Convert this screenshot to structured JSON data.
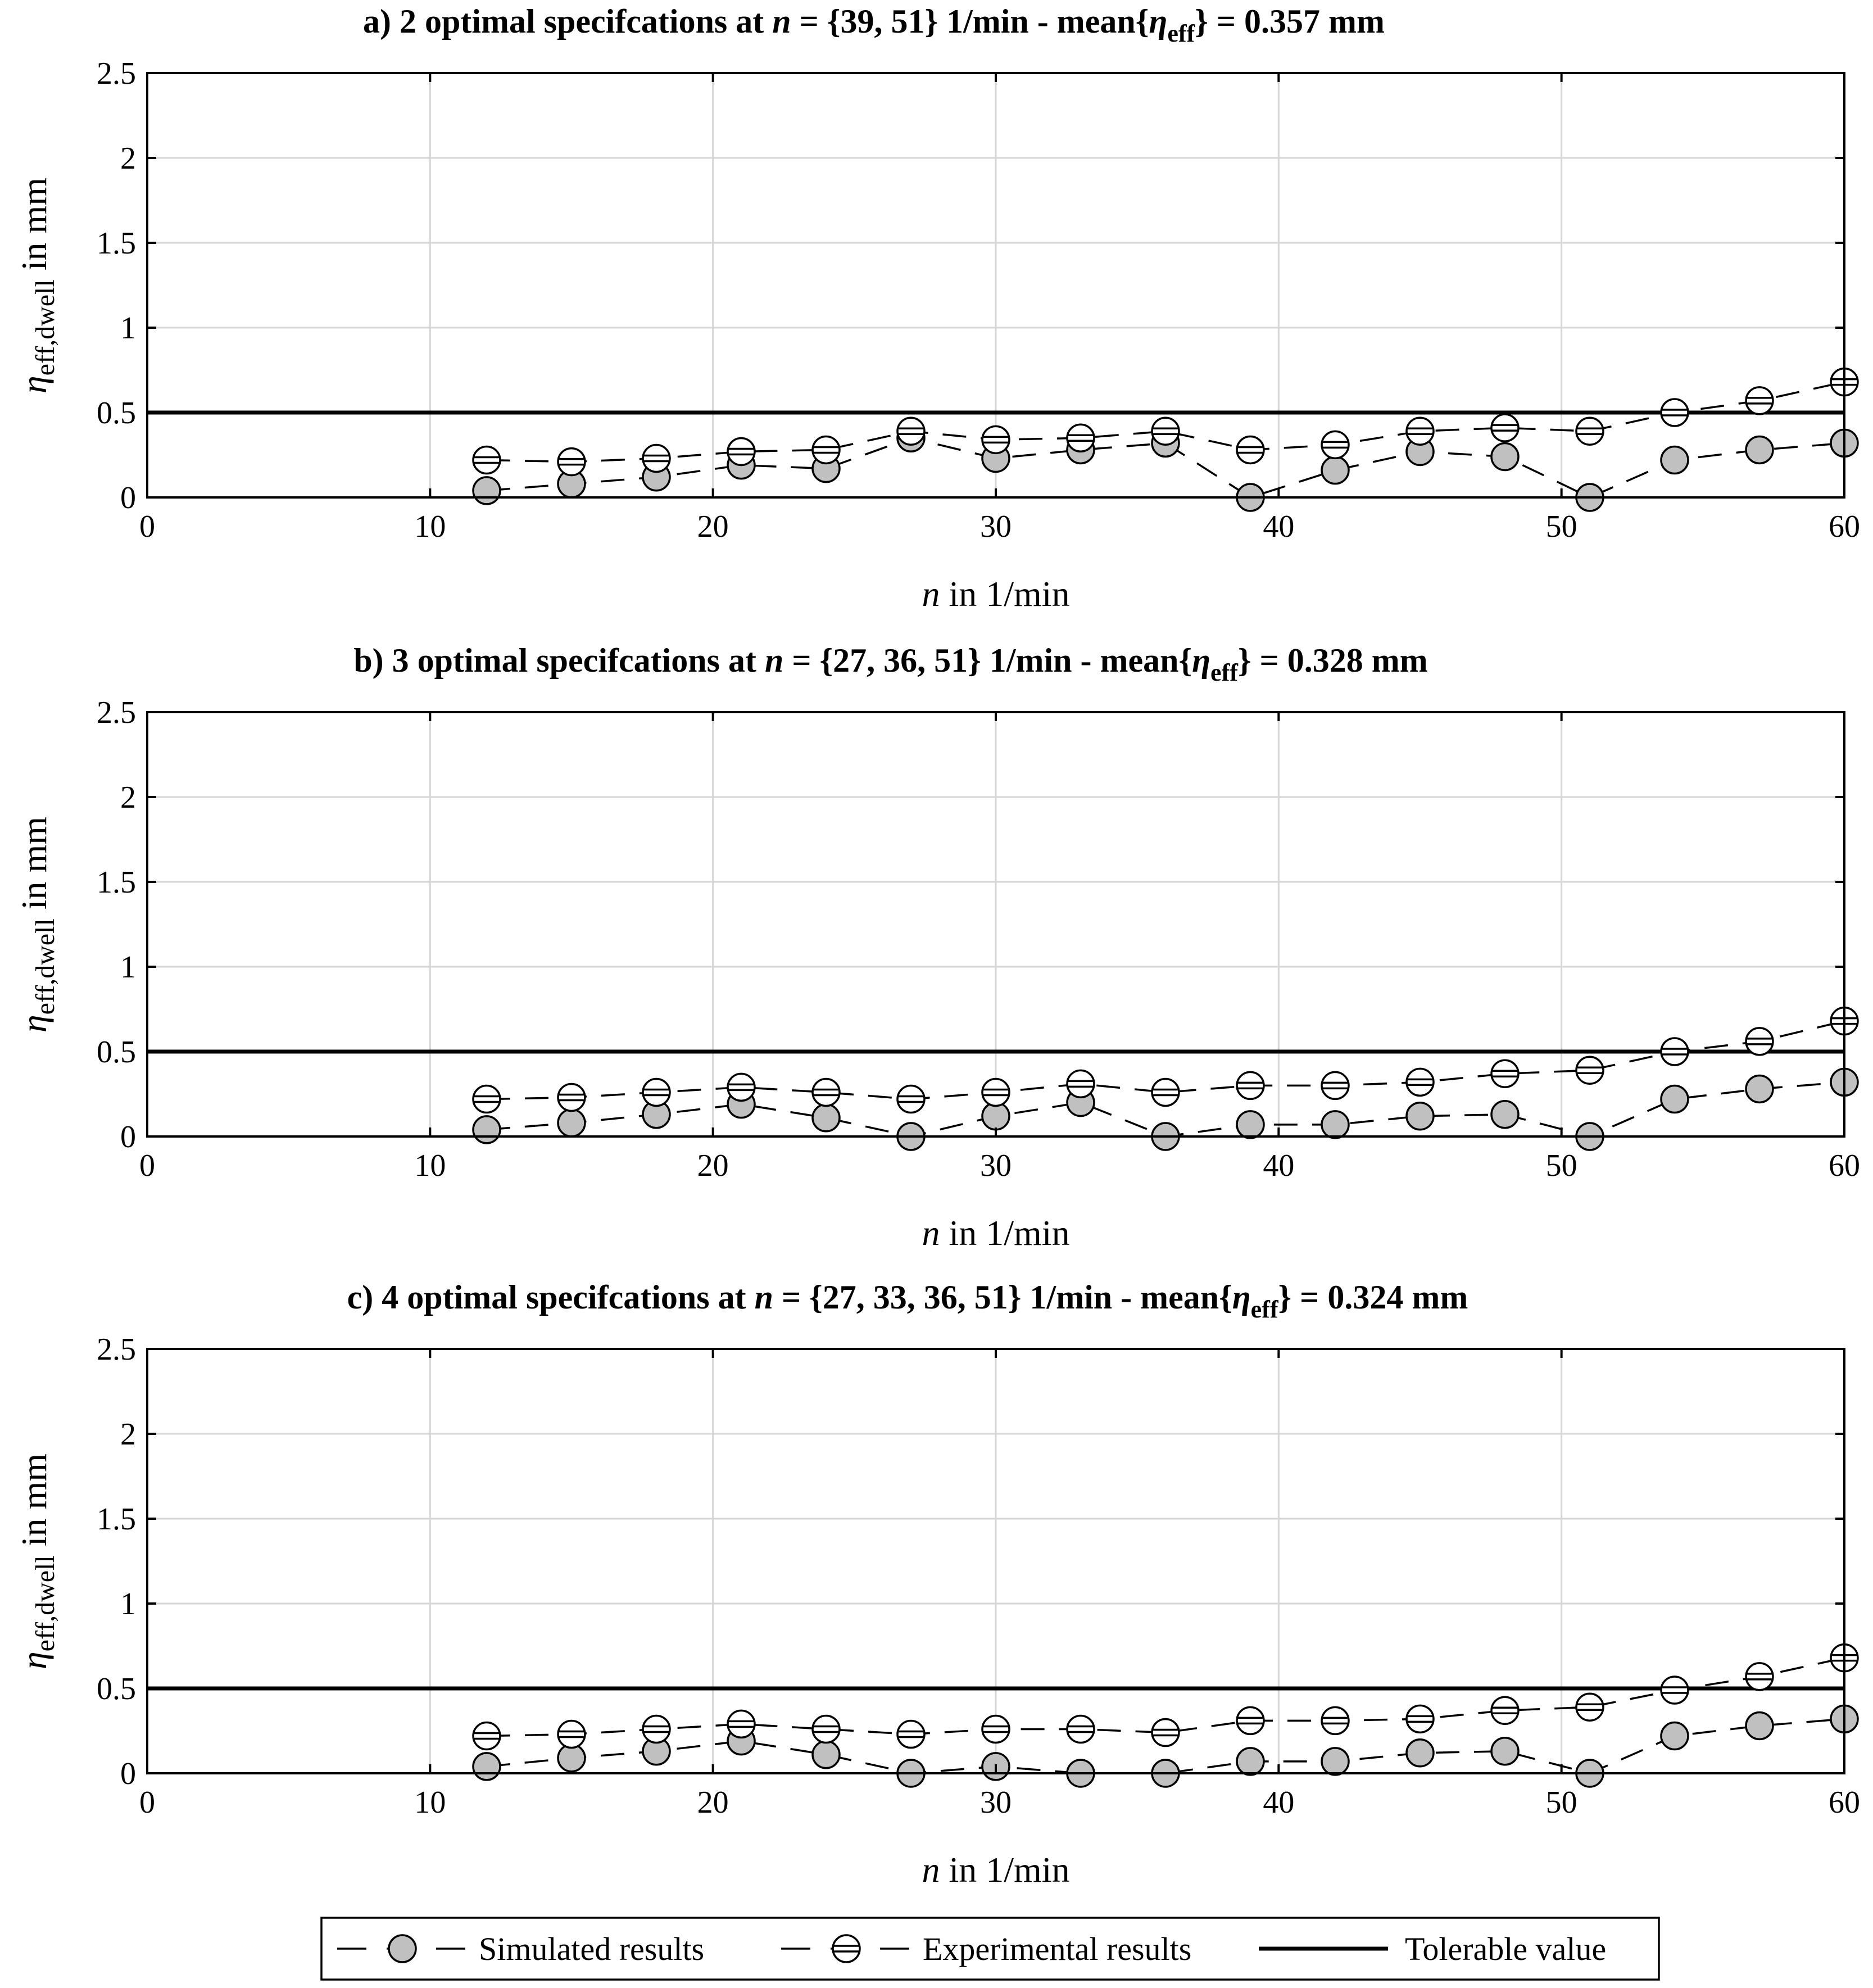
{
  "colors": {
    "simulated_fill": "#c0c0c0",
    "experimental_fill": "#ffffff",
    "grid": "#d6d6d6",
    "ink": "#000000"
  },
  "chart_data": [
    {
      "type": "line",
      "title": "a) 2 optimal specifcations at n = {39, 51} 1/min - mean{η_eff} = 0.357 mm",
      "title_parts": {
        "prefix": "a) 2 optimal specifcations at ",
        "var": "n",
        "mid": " = {39, 51} 1/min - mean{",
        "eta": "η",
        "sub": "eff",
        "suffix": "} = 0.357 mm"
      },
      "xlabel_var": "n",
      "xlabel_rest": " in 1/min",
      "ylabel_eta": "η",
      "ylabel_sub": "eff,dwell",
      "ylabel_rest": " in mm",
      "xlim": [
        0,
        60
      ],
      "ylim": [
        0,
        2.5
      ],
      "xticks": [
        0,
        10,
        20,
        30,
        40,
        50,
        60
      ],
      "yticks": [
        0,
        0.5,
        1,
        1.5,
        2,
        2.5
      ],
      "ytick_labels": [
        "0",
        "0.5",
        "1",
        "1.5",
        "2",
        "2.5"
      ],
      "grid": true,
      "tolerable_value": 0.5,
      "x": [
        12,
        15,
        18,
        21,
        24,
        27,
        30,
        33,
        36,
        39,
        42,
        45,
        48,
        51,
        54,
        57,
        60
      ],
      "series": [
        {
          "name": "Simulated results",
          "values": [
            0.04,
            0.08,
            0.12,
            0.19,
            0.17,
            0.35,
            0.23,
            0.28,
            0.32,
            0.0,
            0.16,
            0.27,
            0.24,
            0.0,
            0.22,
            0.28,
            0.32
          ]
        },
        {
          "name": "Experimental results",
          "values": [
            0.22,
            0.21,
            0.23,
            0.27,
            0.28,
            0.39,
            0.34,
            0.35,
            0.39,
            0.28,
            0.31,
            0.39,
            0.41,
            0.39,
            0.5,
            0.57,
            0.68
          ]
        }
      ]
    },
    {
      "type": "line",
      "title": "b) 3 optimal specifcations at n = {27, 36, 51} 1/min - mean{η_eff} = 0.328 mm",
      "title_parts": {
        "prefix": "b) 3 optimal specifcations at ",
        "var": "n",
        "mid": " = {27, 36, 51} 1/min - mean{",
        "eta": "η",
        "sub": "eff",
        "suffix": "} = 0.328 mm"
      },
      "xlabel_var": "n",
      "xlabel_rest": " in 1/min",
      "ylabel_eta": "η",
      "ylabel_sub": "eff,dwell",
      "ylabel_rest": " in mm",
      "xlim": [
        0,
        60
      ],
      "ylim": [
        0,
        2.5
      ],
      "xticks": [
        0,
        10,
        20,
        30,
        40,
        50,
        60
      ],
      "yticks": [
        0,
        0.5,
        1,
        1.5,
        2,
        2.5
      ],
      "ytick_labels": [
        "0",
        "0.5",
        "1",
        "1.5",
        "2",
        "2.5"
      ],
      "grid": true,
      "tolerable_value": 0.5,
      "x": [
        12,
        15,
        18,
        21,
        24,
        27,
        30,
        33,
        36,
        39,
        42,
        45,
        48,
        51,
        54,
        57,
        60
      ],
      "series": [
        {
          "name": "Simulated results",
          "values": [
            0.04,
            0.08,
            0.13,
            0.19,
            0.11,
            0.0,
            0.12,
            0.2,
            0.0,
            0.07,
            0.07,
            0.12,
            0.13,
            0.0,
            0.22,
            0.28,
            0.32
          ]
        },
        {
          "name": "Experimental results",
          "values": [
            0.22,
            0.23,
            0.26,
            0.29,
            0.26,
            0.22,
            0.26,
            0.31,
            0.26,
            0.3,
            0.3,
            0.32,
            0.37,
            0.39,
            0.5,
            0.56,
            0.68
          ]
        }
      ]
    },
    {
      "type": "line",
      "title": "c) 4 optimal specifcations at n = {27, 33, 36, 51} 1/min - mean{η_eff} = 0.324 mm",
      "title_parts": {
        "prefix": "c) 4 optimal specifcations at ",
        "var": "n",
        "mid": " = {27, 33, 36, 51} 1/min - mean{",
        "eta": "η",
        "sub": "eff",
        "suffix": "} = 0.324 mm"
      },
      "xlabel_var": "n",
      "xlabel_rest": " in 1/min",
      "ylabel_eta": "η",
      "ylabel_sub": "eff,dwell",
      "ylabel_rest": " in mm",
      "xlim": [
        0,
        60
      ],
      "ylim": [
        0,
        2.5
      ],
      "xticks": [
        0,
        10,
        20,
        30,
        40,
        50,
        60
      ],
      "yticks": [
        0,
        0.5,
        1,
        1.5,
        2,
        2.5
      ],
      "ytick_labels": [
        "0",
        "0.5",
        "1",
        "1.5",
        "2",
        "2.5"
      ],
      "grid": true,
      "tolerable_value": 0.5,
      "x": [
        12,
        15,
        18,
        21,
        24,
        27,
        30,
        33,
        36,
        39,
        42,
        45,
        48,
        51,
        54,
        57,
        60
      ],
      "series": [
        {
          "name": "Simulated results",
          "values": [
            0.04,
            0.09,
            0.13,
            0.19,
            0.11,
            0.0,
            0.04,
            0.0,
            0.0,
            0.07,
            0.07,
            0.12,
            0.13,
            0.0,
            0.22,
            0.28,
            0.32
          ]
        },
        {
          "name": "Experimental results",
          "values": [
            0.22,
            0.23,
            0.26,
            0.29,
            0.26,
            0.23,
            0.26,
            0.26,
            0.24,
            0.31,
            0.31,
            0.32,
            0.37,
            0.39,
            0.49,
            0.57,
            0.68
          ]
        }
      ]
    }
  ],
  "legend": {
    "placement": "bottom-center",
    "items": [
      {
        "label": "Simulated results",
        "kind": "simulated"
      },
      {
        "label": "Experimental results",
        "kind": "experimental"
      },
      {
        "label": "Tolerable value",
        "kind": "tolerable"
      }
    ]
  }
}
